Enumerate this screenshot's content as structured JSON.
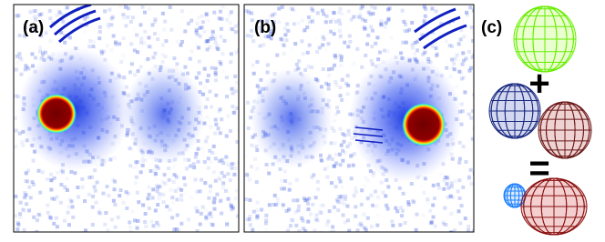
{
  "panels": [
    {
      "label": "(a)"
    },
    {
      "label": "(b)"
    },
    {
      "label": "(c)"
    }
  ],
  "operators": {
    "plus": "+",
    "equals": "="
  }
}
